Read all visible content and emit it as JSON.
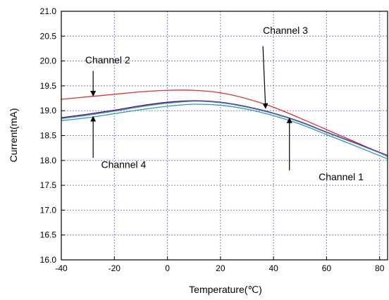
{
  "chart_data": {
    "type": "line",
    "xlabel": "Temperature(℃)",
    "ylabel": "Current(mA)",
    "xlim": [
      -40,
      83
    ],
    "ylim": [
      16.0,
      21.0
    ],
    "xticks": [
      -40,
      -20,
      0,
      20,
      40,
      60,
      80
    ],
    "xtick_labels": [
      "-40",
      "-20",
      "0",
      "20",
      "40",
      "60",
      "80"
    ],
    "yticks": [
      16.0,
      16.5,
      17.0,
      17.5,
      18.0,
      18.5,
      19.0,
      19.5,
      20.0,
      20.5,
      21.0
    ],
    "ytick_labels": [
      "16.0",
      "16.5",
      "17.0",
      "17.5",
      "18.0",
      "18.5",
      "19.0",
      "19.5",
      "20.0",
      "20.5",
      "21.0"
    ],
    "grid": true,
    "series": [
      {
        "name": "Channel 2",
        "color": "#e03030",
        "x": [
          -40,
          -30,
          -20,
          -10,
          0,
          10,
          20,
          30,
          40,
          50,
          60,
          70,
          83
        ],
        "y": [
          19.23,
          19.28,
          19.33,
          19.38,
          19.41,
          19.41,
          19.36,
          19.24,
          19.07,
          18.85,
          18.62,
          18.39,
          18.08
        ]
      },
      {
        "name": "Channel 3",
        "color": "#202060",
        "x": [
          -40,
          -30,
          -20,
          -10,
          0,
          10,
          20,
          30,
          40,
          50,
          60,
          70,
          83
        ],
        "y": [
          18.86,
          18.93,
          19.01,
          19.1,
          19.17,
          19.2,
          19.17,
          19.08,
          18.95,
          18.78,
          18.57,
          18.37,
          18.1
        ]
      },
      {
        "name": "Channel 1",
        "color": "#7070d0",
        "x": [
          -40,
          -30,
          -20,
          -10,
          0,
          10,
          20,
          30,
          40,
          50,
          60,
          70,
          83
        ],
        "y": [
          18.84,
          18.91,
          18.99,
          19.08,
          19.15,
          19.19,
          19.16,
          19.07,
          18.94,
          18.77,
          18.56,
          18.36,
          18.09
        ]
      },
      {
        "name": "Channel 4",
        "color": "#2aa0a0",
        "x": [
          -40,
          -30,
          -20,
          -10,
          0,
          10,
          20,
          30,
          40,
          50,
          60,
          70,
          83
        ],
        "y": [
          18.8,
          18.86,
          18.94,
          19.02,
          19.09,
          19.13,
          19.11,
          19.03,
          18.9,
          18.73,
          18.52,
          18.31,
          18.03
        ]
      }
    ],
    "annotations": [
      {
        "text": "Channel 2",
        "text_at": [
          -31,
          19.95
        ],
        "arrow_from": [
          -28,
          19.8
        ],
        "arrow_to": [
          -28,
          19.3
        ]
      },
      {
        "text": "Channel 3",
        "text_at": [
          36,
          20.55
        ],
        "arrow_from": [
          36,
          20.3
        ],
        "arrow_to": [
          37,
          19.05
        ]
      },
      {
        "text": "Channel 4",
        "text_at": [
          -25,
          17.85
        ],
        "arrow_from": [
          -28,
          18.05
        ],
        "arrow_to": [
          -28,
          18.88
        ]
      },
      {
        "text": "Channel 1",
        "text_at": [
          57,
          17.6
        ],
        "arrow_from": [
          46,
          17.8
        ],
        "arrow_to": [
          46,
          18.85
        ]
      }
    ]
  }
}
